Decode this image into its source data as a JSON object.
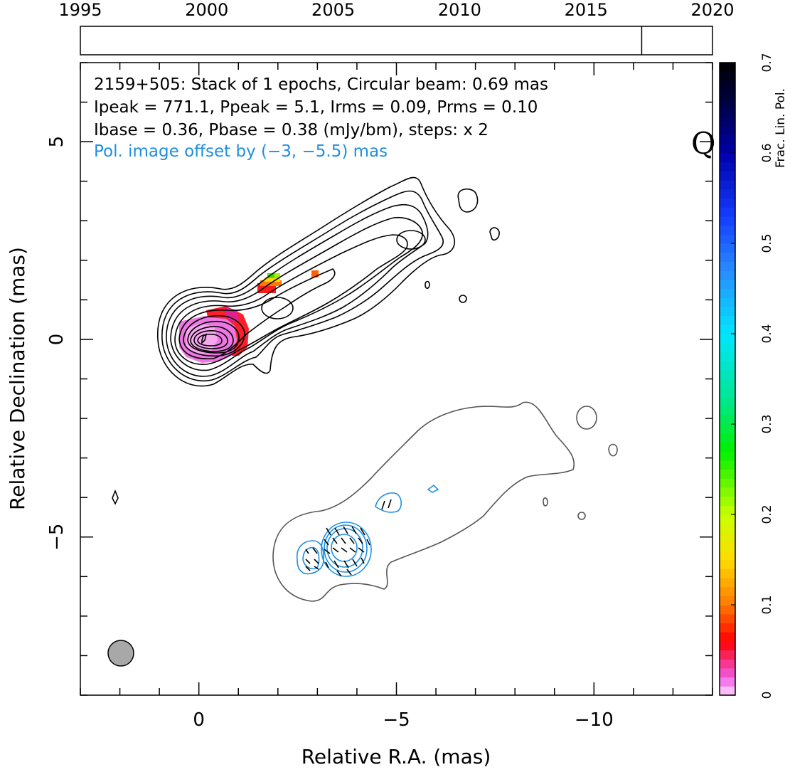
{
  "chart_data": {
    "type": "contour",
    "source_name": "2159+505",
    "band_letter": "Q",
    "annotations": [
      "2159+505: Stack of 1 epochs, Circular beam: 0.69 mas",
      "Ipeak = 771.1, Ppeak = 5.1, Irms = 0.09, Prms = 0.10",
      "Ibase = 0.36, Pbase = 0.38 (mJy/bm), steps: x 2",
      "Pol. image offset by (−3, −5.5) mas"
    ],
    "annotation_colors": [
      "#000000",
      "#000000",
      "#000000",
      "#1f8fe0"
    ],
    "xlabel": "Relative R.A. (mas)",
    "ylabel": "Relative Declination (mas)",
    "xlim": [
      3,
      -13
    ],
    "ylim": [
      -9,
      7
    ],
    "x_ticks": [
      0,
      -5,
      -10
    ],
    "x_tick_labels": [
      "0",
      "−5",
      "−10"
    ],
    "y_ticks": [
      -5,
      0,
      5
    ],
    "y_tick_labels": [
      "−5",
      "0",
      "5"
    ],
    "timeline": {
      "range": [
        1995,
        2020
      ],
      "tick_labels": [
        "1995",
        "2000",
        "2005",
        "2010",
        "2015",
        "2020"
      ],
      "epochs": [
        2017.2
      ]
    },
    "colorbar": {
      "label": "Frac. Lin. Pol.",
      "range": [
        0,
        0.7
      ],
      "tick_labels": [
        "0",
        "0.1",
        "0.2",
        "0.3",
        "0.4",
        "0.5",
        "0.6",
        "0.7"
      ]
    },
    "beam_mas": 0.69,
    "polarization_offset_mas": [
      -3,
      -5.5
    ]
  }
}
